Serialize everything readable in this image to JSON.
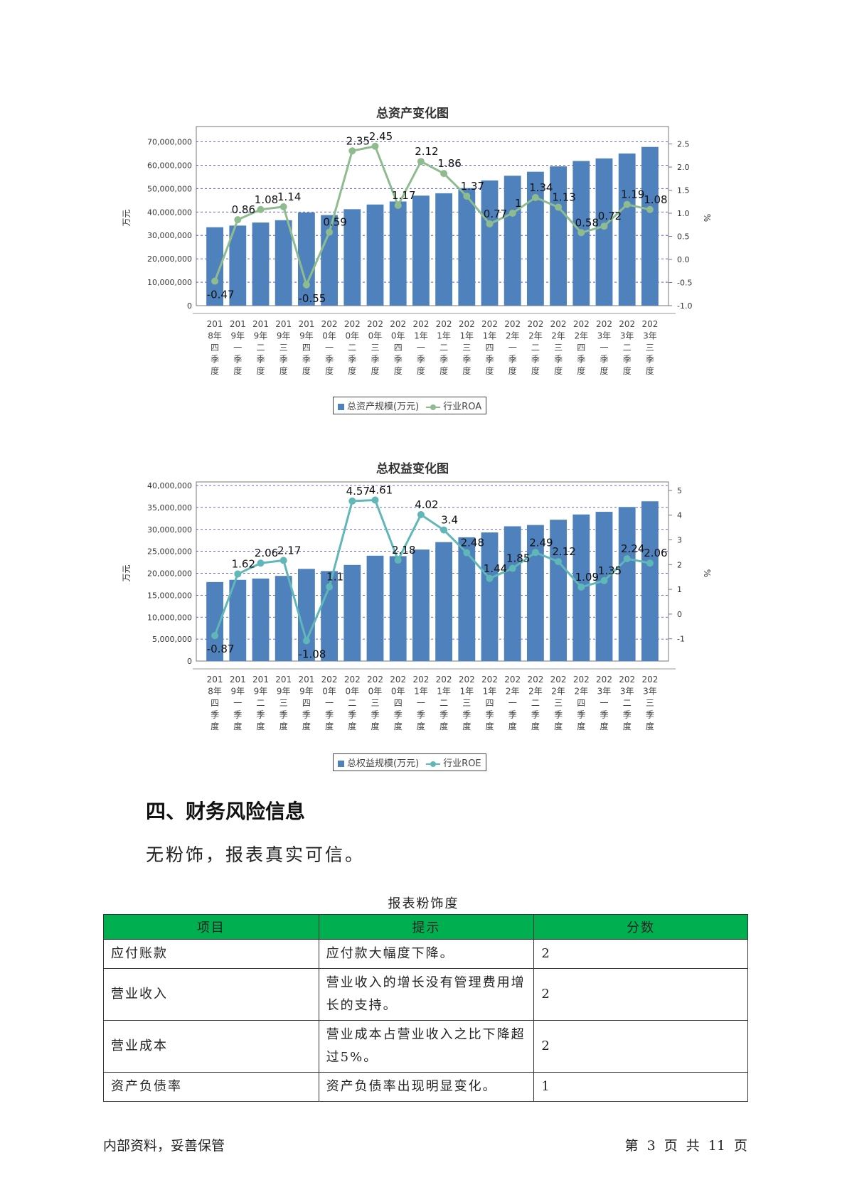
{
  "chart_data": [
    {
      "type": "bar",
      "title": "总资产变化图",
      "ylabel": "万元",
      "y2label": "%",
      "ylim": [
        0,
        75000000
      ],
      "y2lim": [
        -1.0,
        2.8
      ],
      "yticks": [
        "0",
        "10,000,000",
        "20,000,000",
        "30,000,000",
        "40,000,000",
        "50,000,000",
        "60,000,000",
        "70,000,000"
      ],
      "y2ticks": [
        "-1.0",
        "-0.5",
        "0.0",
        "0.5",
        "1.0",
        "1.5",
        "2.0",
        "2.5"
      ],
      "categories": [
        "2018年四季度",
        "2019年一季度",
        "2019年二季度",
        "2019年三季度",
        "2019年四季度",
        "2020年一季度",
        "2020年二季度",
        "2020年三季度",
        "2020年四季度",
        "2021年一季度",
        "2021年二季度",
        "2021年三季度",
        "2021年四季度",
        "2022年一季度",
        "2022年二季度",
        "2022年三季度",
        "2022年四季度",
        "2023年一季度",
        "2023年二季度",
        "2023年三季度"
      ],
      "series": [
        {
          "name": "总资产规模(万元)",
          "kind": "bar",
          "color": "#4f81bd",
          "values": [
            33500000,
            34200000,
            35500000,
            36500000,
            39800000,
            38700000,
            41200000,
            43200000,
            44500000,
            47000000,
            48000000,
            50200000,
            53500000,
            55500000,
            57200000,
            59500000,
            61800000,
            62900000,
            65000000,
            67800000
          ]
        },
        {
          "name": "行业ROA",
          "kind": "line",
          "color": "#8fbc8f",
          "values": [
            -0.47,
            0.86,
            1.08,
            1.14,
            -0.55,
            0.59,
            2.35,
            2.45,
            1.17,
            2.12,
            1.86,
            1.37,
            0.77,
            1,
            1.34,
            1.13,
            0.58,
            0.72,
            1.19,
            1.08
          ],
          "labels": [
            "-0.47",
            "0.86",
            "1.08",
            "1.14",
            "-0.55",
            "0.59",
            "2.35",
            "2.45",
            "1.17",
            "2.12",
            "1.86",
            "1.37",
            "0.77",
            "1",
            "1.34",
            "1.13",
            "0.58",
            "0.72",
            "1.19",
            "1.08"
          ]
        }
      ],
      "grid": true,
      "legend": "bottom"
    },
    {
      "type": "bar",
      "title": "总权益变化图",
      "ylabel": "万元",
      "y2label": "%",
      "ylim": [
        0,
        40000000
      ],
      "y2lim": [
        -1.9,
        5.2
      ],
      "yticks": [
        "0",
        "5,000,000",
        "10,000,000",
        "15,000,000",
        "20,000,000",
        "25,000,000",
        "30,000,000",
        "35,000,000",
        "40,000,000"
      ],
      "y2ticks": [
        "-1",
        "0",
        "1",
        "2",
        "3",
        "4",
        "5"
      ],
      "categories": [
        "2018年四季度",
        "2019年一季度",
        "2019年二季度",
        "2019年三季度",
        "2019年四季度",
        "2020年一季度",
        "2020年二季度",
        "2020年三季度",
        "2020年四季度",
        "2021年一季度",
        "2021年二季度",
        "2021年三季度",
        "2021年四季度",
        "2022年一季度",
        "2022年二季度",
        "2022年三季度",
        "2022年四季度",
        "2023年一季度",
        "2023年二季度",
        "2023年三季度"
      ],
      "series": [
        {
          "name": "总权益规模(万元)",
          "kind": "bar",
          "color": "#4f81bd",
          "values": [
            18000000,
            18500000,
            18800000,
            19400000,
            21000000,
            20500000,
            21900000,
            24000000,
            23900000,
            25400000,
            27100000,
            28200000,
            29300000,
            30700000,
            31000000,
            32200000,
            33400000,
            34000000,
            35100000,
            36400000
          ]
        },
        {
          "name": "行业ROE",
          "kind": "line",
          "color": "#5fb7b7",
          "values": [
            -0.87,
            1.62,
            2.06,
            2.17,
            -1.08,
            1.1,
            4.57,
            4.61,
            2.18,
            4.02,
            3.4,
            2.48,
            1.44,
            1.85,
            2.49,
            2.12,
            1.09,
            1.35,
            2.24,
            2.06
          ],
          "labels": [
            "-0.87",
            "1.62",
            "2.06",
            "2.17",
            "-1.08",
            "1.1",
            "4.57",
            "4.61",
            "2.18",
            "4.02",
            "3.4",
            "2.48",
            "1.44",
            "1.85",
            "2.49",
            "2.12",
            "1.09",
            "1.35",
            "2.24",
            "2.06"
          ]
        }
      ],
      "grid": true,
      "legend": "bottom"
    }
  ],
  "section": {
    "heading": "四、财务风险信息",
    "text": "无粉饰，报表真实可信。"
  },
  "table": {
    "caption": "报表粉饰度",
    "headers": [
      "项目",
      "提示",
      "分数"
    ],
    "rows": [
      {
        "item": "应付账款",
        "hint": "应付款大幅度下降。",
        "score": "2"
      },
      {
        "item": "营业收入",
        "hint": "营业收入的增长没有管理费用增长的支持。",
        "score": "2"
      },
      {
        "item": "营业成本",
        "hint": "营业成本占营业收入之比下降超过5%。",
        "score": "2"
      },
      {
        "item": "资产负债率",
        "hint": "资产负债率出现明显变化。",
        "score": "1"
      }
    ]
  },
  "footer": {
    "left": "内部资料，妥善保管",
    "right": "第 3 页   共 11 页"
  }
}
